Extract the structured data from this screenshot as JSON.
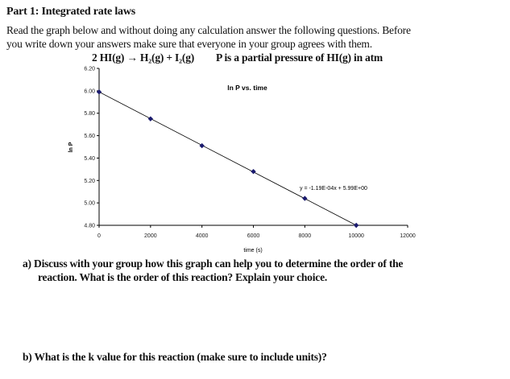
{
  "heading": "Part 1: Integrated rate laws",
  "intro_line1": "Read the graph below and without doing any calculation answer the following questions. Before",
  "intro_line2": "you write down your answers make sure that everyone in your group agrees with them.",
  "reaction": "2 HI(g) → H₂(g) + I₂(g)",
  "pressure_note": "P is a partial pressure of HI(g) in atm",
  "chart_data": {
    "type": "scatter",
    "title": "ln P vs. time",
    "xlabel": "time (s)",
    "ylabel": "ln P",
    "xlim": [
      0,
      12000
    ],
    "ylim": [
      4.8,
      6.2
    ],
    "xticks": [
      "0",
      "2000",
      "4000",
      "6000",
      "8000",
      "10000",
      "12000"
    ],
    "yticks": [
      "4.80",
      "5.00",
      "5.20",
      "5.40",
      "5.60",
      "5.80",
      "6.00",
      "6.20"
    ],
    "x": [
      0,
      2000,
      4000,
      6000,
      8000,
      10000
    ],
    "y": [
      5.99,
      5.75,
      5.51,
      5.28,
      5.04,
      4.8
    ],
    "trendline": {
      "slope": -0.000119,
      "intercept": 5.99,
      "label": "y = -1.19E-04x + 5.99E+00"
    },
    "grid": false,
    "marker_color": "#1a1a6e"
  },
  "question_a_line1": "a)  Discuss with your group how this graph can help you to determine the order of the",
  "question_a_line2": "reaction. What is the order of this reaction? Explain your choice.",
  "question_b": "b)  What is the k value for this reaction (make sure to include units)?"
}
